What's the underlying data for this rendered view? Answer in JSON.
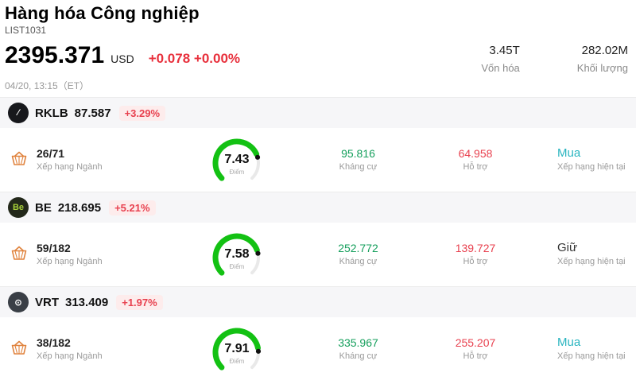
{
  "header": {
    "title": "Hàng hóa Công nghiệp",
    "list_id": "LIST1031",
    "price": "2395.371",
    "currency": "USD",
    "change": "+0.078 +0.00%",
    "datetime": "04/20, 13:15（ET）",
    "stats": [
      {
        "value": "3.45T",
        "label": "Vốn hóa"
      },
      {
        "value": "282.02M",
        "label": "Khối lượng"
      }
    ]
  },
  "colors": {
    "up_green": "#159f5c",
    "down_red": "#e8414f",
    "gauge_green": "#13c113",
    "buy_teal": "#2ab5c0",
    "hold_dark": "#333333"
  },
  "stocks": [
    {
      "ticker": "RKLB",
      "price": "87.587",
      "change": "+3.29%",
      "logo": {
        "text": "∕",
        "bg": "#17181c",
        "color": "#ffffff"
      },
      "rank": "26/71",
      "rank_label": "Xếp hạng Ngành",
      "score": 7.43,
      "score_label": "Điểm",
      "resistance": "95.816",
      "resistance_label": "Kháng cự",
      "support": "64.958",
      "support_label": "Hỗ trợ",
      "rating": "Mua",
      "rating_label": "Xếp hạng hiện tại",
      "rating_color": "#2ab5c0"
    },
    {
      "ticker": "BE",
      "price": "218.695",
      "change": "+5.21%",
      "logo": {
        "text": "Be",
        "bg": "#23281a",
        "color": "#a6ce39"
      },
      "rank": "59/182",
      "rank_label": "Xếp hạng Ngành",
      "score": 7.58,
      "score_label": "Điểm",
      "resistance": "252.772",
      "resistance_label": "Kháng cự",
      "support": "139.727",
      "support_label": "Hỗ trợ",
      "rating": "Giữ",
      "rating_label": "Xếp hạng hiện tại",
      "rating_color": "#333333"
    },
    {
      "ticker": "VRT",
      "price": "313.409",
      "change": "+1.97%",
      "logo": {
        "text": "⊙",
        "bg": "#3a3f46",
        "color": "#ffffff"
      },
      "rank": "38/182",
      "rank_label": "Xếp hạng Ngành",
      "score": 7.91,
      "score_label": "Điểm",
      "resistance": "335.967",
      "resistance_label": "Kháng cự",
      "support": "255.207",
      "support_label": "Hỗ trợ",
      "rating": "Mua",
      "rating_label": "Xếp hạng hiện tại",
      "rating_color": "#2ab5c0"
    }
  ]
}
